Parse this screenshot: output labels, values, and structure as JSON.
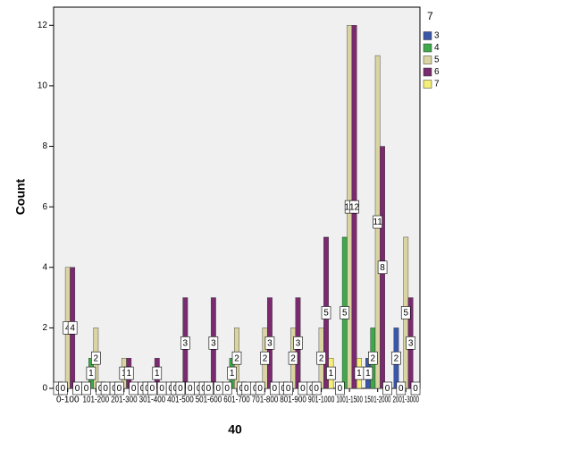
{
  "chart_data": {
    "type": "bar",
    "x_label": "40",
    "y_label": "Count",
    "legend_title": "7",
    "categories": [
      "0-100",
      "101-200",
      "201-300",
      "301-400",
      "401-500",
      "501-600",
      "601-700",
      "701-800",
      "801-900",
      "901-1000",
      "1001-1500",
      "1501-2000",
      "2001-3000"
    ],
    "series": [
      {
        "name": "3",
        "color": "#3b57a7",
        "values": [
          0,
          0,
          0,
          0,
          0,
          0,
          0,
          0,
          0,
          0,
          0,
          1,
          2
        ]
      },
      {
        "name": "4",
        "color": "#3fa84b",
        "values": [
          0,
          1,
          0,
          0,
          0,
          0,
          1,
          0,
          0,
          0,
          5,
          2,
          0
        ]
      },
      {
        "name": "5",
        "color": "#d9d4a1",
        "values": [
          4,
          2,
          1,
          0,
          0,
          0,
          2,
          2,
          2,
          2,
          12,
          11,
          5
        ]
      },
      {
        "name": "6",
        "color": "#7a2a6e",
        "values": [
          4,
          0,
          1,
          1,
          3,
          3,
          0,
          3,
          3,
          5,
          12,
          8,
          3
        ]
      },
      {
        "name": "7",
        "color": "#f4ef78",
        "values": [
          0,
          0,
          0,
          0,
          0,
          0,
          0,
          0,
          0,
          1,
          1,
          0,
          0
        ]
      }
    ],
    "ylim": [
      0,
      12.6
    ],
    "yticks": [
      0,
      2,
      4,
      6,
      8,
      10,
      12
    ],
    "grid": false,
    "legend": "right"
  }
}
